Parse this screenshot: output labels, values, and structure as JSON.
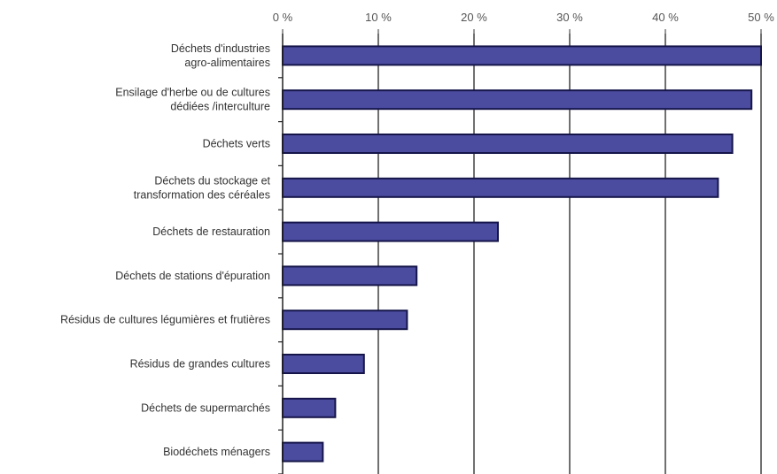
{
  "chart_data": {
    "type": "bar",
    "orientation": "horizontal",
    "categories": [
      [
        "Déchets d'industries",
        "agro-alimentaires"
      ],
      [
        "Ensilage d'herbe ou de cultures",
        "dédiées /interculture"
      ],
      [
        "Déchets verts"
      ],
      [
        "Déchets du stockage et",
        "transformation des céréales"
      ],
      [
        "Déchets de restauration"
      ],
      [
        "Déchets de stations d'épuration"
      ],
      [
        "Résidus de cultures légumières et frutières"
      ],
      [
        "Résidus de grandes cultures"
      ],
      [
        "Déchets de supermarchés"
      ],
      [
        "Biodéchets ménagers"
      ]
    ],
    "values": [
      50,
      49,
      47,
      45.5,
      22.5,
      14,
      13,
      8.5,
      5.5,
      4.2
    ],
    "x_ticks": [
      "0 %",
      "10 %",
      "20 %",
      "30 %",
      "40 %",
      "50 %"
    ],
    "x_tick_values": [
      0,
      10,
      20,
      30,
      40,
      50
    ],
    "xlim": [
      0,
      50
    ],
    "axis_position": "top",
    "grid": true,
    "bar_color": "#4b4ba0",
    "bar_edge_color": "#15154a",
    "title": "",
    "xlabel": "",
    "ylabel": ""
  }
}
